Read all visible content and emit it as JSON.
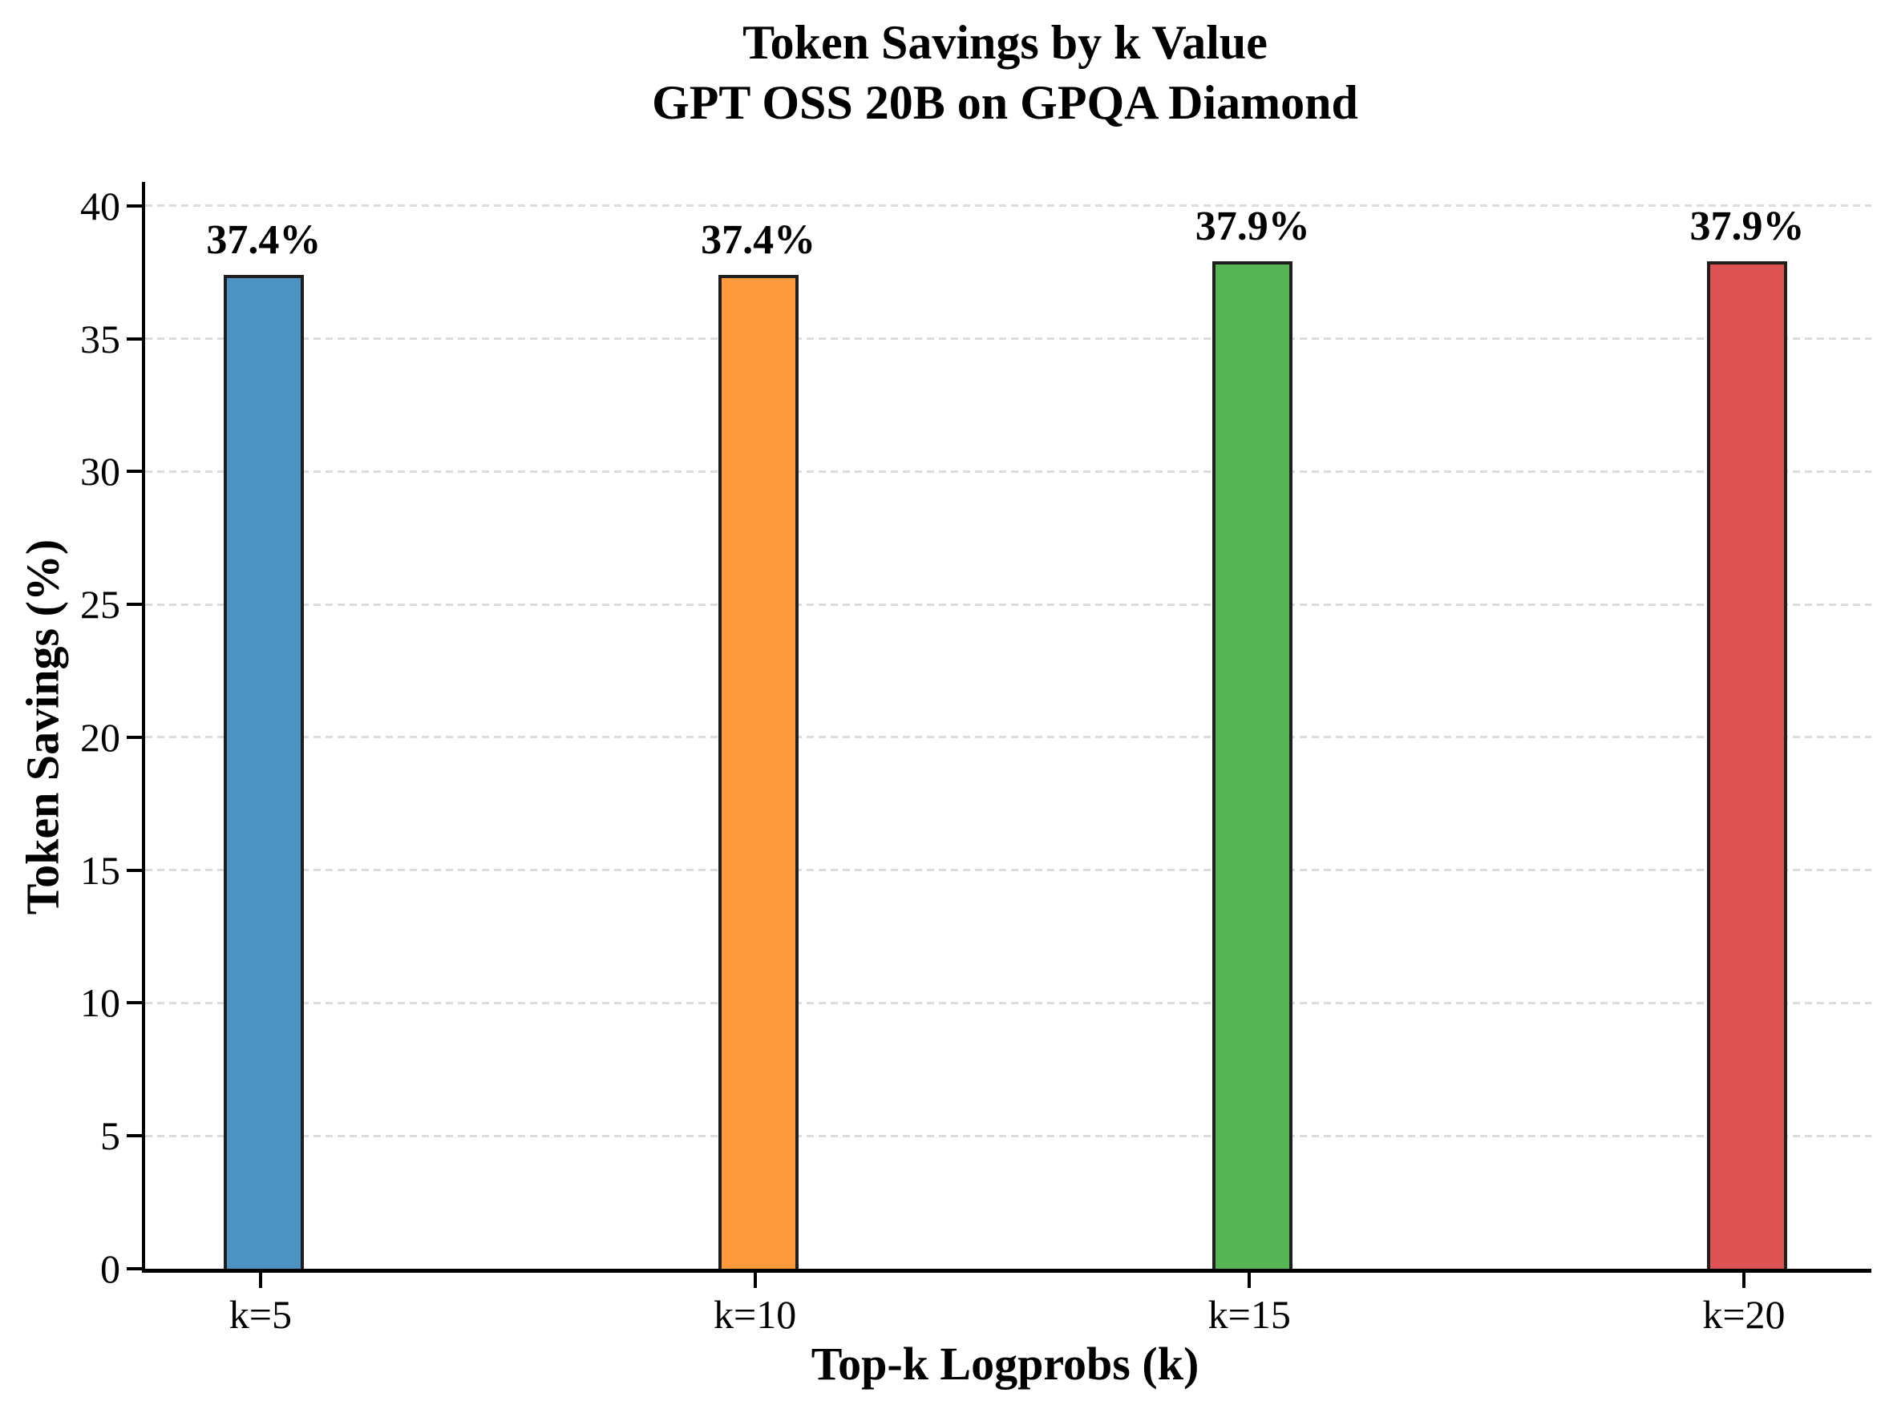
{
  "chart_data": {
    "type": "bar",
    "title": "Token Savings by k Value",
    "subtitle": "GPT OSS 20B on GPQA Diamond",
    "categories": [
      "k=5",
      "k=10",
      "k=15",
      "k=20"
    ],
    "values": [
      37.4,
      37.4,
      37.9,
      37.9
    ],
    "value_labels": [
      "37.4%",
      "37.4%",
      "37.9%",
      "37.9%"
    ],
    "bar_colors": [
      "#4c92c3",
      "#ff993e",
      "#56b356",
      "#dd5353"
    ],
    "bar_edge_color": "#1f1f1f",
    "xlabel": "Top-k Logprobs (k)",
    "ylabel": "Token Savings (%)",
    "ylim": [
      0,
      40.9
    ],
    "yticks": [
      0,
      5,
      10,
      15,
      20,
      25,
      30,
      35,
      40
    ],
    "grid": "horizontal-dashed",
    "grid_color": "#dcdcdc",
    "legend": "none",
    "background": "#ffffff"
  }
}
